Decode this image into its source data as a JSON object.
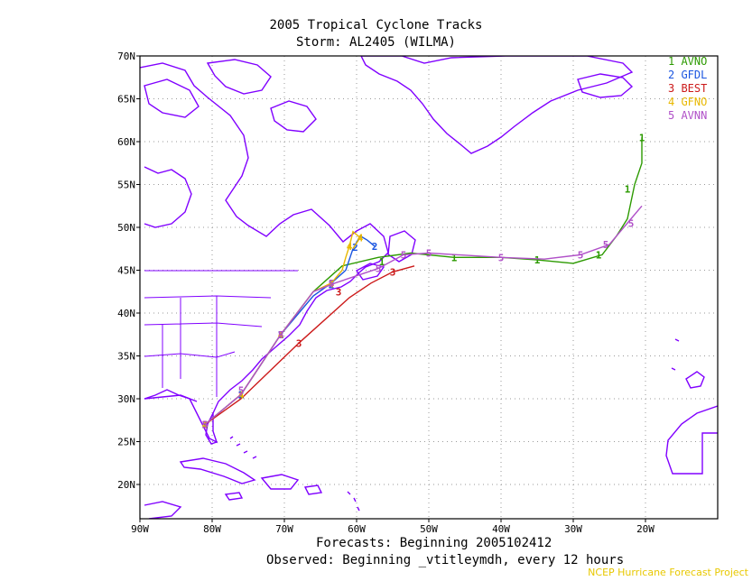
{
  "title": "2005 Tropical Cyclone Tracks",
  "subtitle": "Storm: AL2405 (WILMA)",
  "footer_forecasts": "Forecasts: Beginning 2005102412",
  "footer_observed": "Observed: Beginning _vtitleymdh, every 12 hours",
  "credit": "NCEP Hurricane Forecast Project",
  "colors": {
    "coast": "#8000ff",
    "grid": "#9a9a9a",
    "avno": "#2c9a00",
    "gfdl": "#1a55e0",
    "best": "#cc1a1a",
    "gfno": "#e8b800",
    "avnn": "#b050c8"
  },
  "map": {
    "lon_range": [
      -90,
      -10
    ],
    "lat_range": [
      16,
      70
    ],
    "x_ticks": [
      {
        "lon": -90,
        "label": "90W"
      },
      {
        "lon": -80,
        "label": "80W"
      },
      {
        "lon": -70,
        "label": "70W"
      },
      {
        "lon": -60,
        "label": "60W"
      },
      {
        "lon": -50,
        "label": "50W"
      },
      {
        "lon": -40,
        "label": "40W"
      },
      {
        "lon": -30,
        "label": "30W"
      },
      {
        "lon": -20,
        "label": "20W"
      }
    ],
    "y_ticks": [
      {
        "lat": 70,
        "label": "70N"
      },
      {
        "lat": 65,
        "label": "65N"
      },
      {
        "lat": 60,
        "label": "60N"
      },
      {
        "lat": 55,
        "label": "55N"
      },
      {
        "lat": 50,
        "label": "50N"
      },
      {
        "lat": 45,
        "label": "45N"
      },
      {
        "lat": 40,
        "label": "40N"
      },
      {
        "lat": 35,
        "label": "35N"
      },
      {
        "lat": 30,
        "label": "30N"
      },
      {
        "lat": 25,
        "label": "25N"
      },
      {
        "lat": 20,
        "label": "20N"
      }
    ]
  },
  "legend": [
    {
      "id": "1",
      "name": "AVNO",
      "color": "#2c9a00"
    },
    {
      "id": "2",
      "name": "GFDL",
      "color": "#1a55e0"
    },
    {
      "id": "3",
      "name": "BEST",
      "color": "#cc1a1a"
    },
    {
      "id": "4",
      "name": "GFNO",
      "color": "#e8b800"
    },
    {
      "id": "5",
      "name": "AVNN",
      "color": "#b050c8"
    }
  ],
  "tracks": [
    {
      "id": "1",
      "color": "#2c9a00",
      "points": [
        [
          -81,
          27
        ],
        [
          -76,
          30.5
        ],
        [
          -70.5,
          37.5
        ],
        [
          -66,
          42.5
        ],
        [
          -62,
          45.5
        ],
        [
          -57,
          46.5
        ],
        [
          -52.5,
          47
        ],
        [
          -46.5,
          46.5
        ],
        [
          -40,
          46.5
        ],
        [
          -35,
          46.2
        ],
        [
          -30,
          45.8
        ],
        [
          -26,
          46.8
        ],
        [
          -24,
          49
        ],
        [
          -22.5,
          51
        ],
        [
          -21.5,
          55
        ],
        [
          -20.5,
          57.5
        ],
        [
          -20.5,
          60.5
        ]
      ],
      "markers": [
        [
          -81,
          27
        ],
        [
          -76,
          30.5
        ],
        [
          -70.5,
          37.5
        ],
        [
          -56.5,
          46
        ],
        [
          -46.5,
          46.5
        ],
        [
          -35,
          46.2
        ],
        [
          -26.5,
          46.8
        ],
        [
          -22.5,
          54.5
        ],
        [
          -20.5,
          60.5
        ]
      ]
    },
    {
      "id": "2",
      "color": "#1a55e0",
      "points": [
        [
          -81,
          27
        ],
        [
          -76,
          30.5
        ],
        [
          -70.5,
          37.5
        ],
        [
          -66,
          42
        ],
        [
          -63.5,
          43.5
        ],
        [
          -61.5,
          45
        ],
        [
          -60.5,
          47.5
        ],
        [
          -59.5,
          49
        ],
        [
          -58.5,
          48.5
        ],
        [
          -57.5,
          47.8
        ]
      ],
      "markers": [
        [
          -81,
          27
        ],
        [
          -76,
          30.5
        ],
        [
          -70.5,
          37.5
        ],
        [
          -63.5,
          43.3
        ],
        [
          -60.2,
          47.7
        ],
        [
          -57.5,
          47.8
        ]
      ]
    },
    {
      "id": "3",
      "color": "#cc1a1a",
      "points": [
        [
          -81,
          27
        ],
        [
          -76,
          30
        ],
        [
          -68,
          36.5
        ],
        [
          -61,
          41.8
        ],
        [
          -58,
          43.5
        ],
        [
          -55,
          44.8
        ],
        [
          -52,
          45.5
        ]
      ],
      "markers": [
        [
          -81,
          27
        ],
        [
          -68,
          36.5
        ],
        [
          -62.5,
          42.5
        ],
        [
          -55,
          44.8
        ]
      ]
    },
    {
      "id": "4",
      "color": "#e8b800",
      "points": [
        [
          -81,
          27
        ],
        [
          -76,
          30.5
        ],
        [
          -70.5,
          37.5
        ],
        [
          -66,
          42.5
        ],
        [
          -63.5,
          43.5
        ],
        [
          -62,
          45
        ],
        [
          -61.5,
          46.5
        ],
        [
          -61,
          47.8
        ],
        [
          -60.5,
          49.5
        ],
        [
          -59.5,
          48.8
        ],
        [
          -60.5,
          47.5
        ]
      ],
      "markers": [
        [
          -81,
          27
        ],
        [
          -76,
          30.5
        ],
        [
          -70.5,
          37.5
        ],
        [
          -63.5,
          43.4
        ],
        [
          -61,
          47.8
        ],
        [
          -59.5,
          48.8
        ]
      ]
    },
    {
      "id": "5",
      "color": "#b050c8",
      "points": [
        [
          -81,
          27
        ],
        [
          -76,
          30.5
        ],
        [
          -70.5,
          37.5
        ],
        [
          -66,
          42.5
        ],
        [
          -63,
          43.5
        ],
        [
          -57,
          45.2
        ],
        [
          -53.5,
          46.8
        ],
        [
          -50,
          47
        ],
        [
          -40,
          46.5
        ],
        [
          -34,
          46.3
        ],
        [
          -29,
          46.8
        ],
        [
          -25,
          48
        ],
        [
          -22,
          51
        ],
        [
          -20.5,
          52.5
        ]
      ],
      "markers": [
        [
          -81,
          27
        ],
        [
          -76,
          31
        ],
        [
          -70.5,
          37.5
        ],
        [
          -63.5,
          43.5
        ],
        [
          -57,
          45.2
        ],
        [
          -53.5,
          46.8
        ],
        [
          -50,
          47
        ],
        [
          -40,
          46.5
        ],
        [
          -29,
          46.8
        ],
        [
          -25.5,
          48
        ],
        [
          -22,
          50.5
        ]
      ]
    }
  ]
}
